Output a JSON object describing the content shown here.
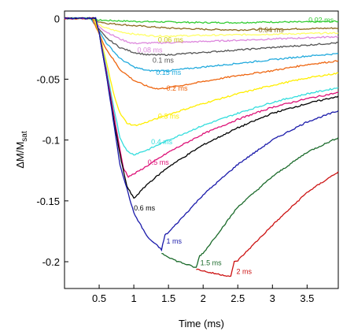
{
  "chart_data": {
    "type": "line",
    "xlabel": "Time (ms)",
    "ylabel": "ΔM/M",
    "ylabel_sub": "sat",
    "xlim": [
      0.0,
      3.95
    ],
    "ylim": [
      -0.222,
      0.006
    ],
    "x_ticks": [
      0.5,
      1,
      1.5,
      2,
      2.5,
      3,
      3.5
    ],
    "x_tick_labels": [
      "0.5",
      "1",
      "1.5",
      "2",
      "2.5",
      "3",
      "3.5"
    ],
    "y_ticks": [
      0,
      -0.05,
      -0.1,
      -0.15,
      -0.2
    ],
    "y_tick_labels": [
      "0",
      "-0.05",
      "-0.1",
      "-0.15",
      "-0.2"
    ],
    "grid": false,
    "series": [
      {
        "name": "0.02 ms",
        "color": "#33cc33",
        "label_at": [
          3.52,
          -0.0015
        ],
        "x": [
          0,
          0.3,
          0.38,
          0.42,
          0.5,
          1,
          1.5,
          2,
          2.5,
          3,
          3.5,
          3.95
        ],
        "y": [
          0,
          0,
          0,
          -0.001,
          -0.0015,
          -0.0025,
          -0.003,
          -0.0035,
          -0.0035,
          -0.003,
          -0.003,
          -0.0025
        ]
      },
      {
        "name": "0.04 ms",
        "color": "#8b6b20",
        "label_at": [
          2.8,
          -0.0095
        ],
        "x": [
          0,
          0.3,
          0.38,
          0.44,
          0.6,
          0.8,
          1.0,
          1.5,
          2.0,
          2.5,
          3.0,
          3.5,
          3.95
        ],
        "y": [
          0,
          0,
          0,
          -0.002,
          -0.004,
          -0.005,
          -0.006,
          -0.008,
          -0.009,
          -0.0095,
          -0.009,
          -0.0085,
          -0.008
        ]
      },
      {
        "name": "0.06 ms",
        "color": "#ffff66",
        "label_at": [
          1.35,
          -0.0175
        ],
        "x": [
          0,
          0.3,
          0.38,
          0.44,
          0.6,
          0.8,
          1.0,
          1.3,
          1.5,
          2.0,
          2.5,
          3.0,
          3.5,
          3.95
        ],
        "y": [
          0,
          0,
          0,
          -0.004,
          -0.008,
          -0.011,
          -0.013,
          -0.0145,
          -0.0145,
          -0.014,
          -0.0135,
          -0.013,
          -0.0125,
          -0.012
        ]
      },
      {
        "name": "0.08 ms",
        "color": "#dd88dd",
        "label_at": [
          1.05,
          -0.026
        ],
        "x": [
          0,
          0.3,
          0.38,
          0.44,
          0.6,
          0.8,
          0.95,
          1.0,
          1.5,
          2.0,
          2.5,
          3.0,
          3.5,
          3.95
        ],
        "y": [
          0,
          0,
          0,
          -0.004,
          -0.011,
          -0.017,
          -0.02,
          -0.0205,
          -0.02,
          -0.019,
          -0.018,
          -0.017,
          -0.016,
          -0.015
        ]
      },
      {
        "name": "0.1 ms",
        "color": "#555555",
        "label_at": [
          1.27,
          -0.0345
        ],
        "x": [
          0,
          0.3,
          0.38,
          0.44,
          0.6,
          0.8,
          1.0,
          1.2,
          1.5,
          2.0,
          2.5,
          3.0,
          3.5,
          3.95
        ],
        "y": [
          0,
          0,
          0,
          -0.005,
          -0.016,
          -0.024,
          -0.028,
          -0.03,
          -0.03,
          -0.028,
          -0.026,
          -0.024,
          -0.022,
          -0.02
        ]
      },
      {
        "name": "0.15 ms",
        "color": "#22aadd",
        "label_at": [
          1.32,
          -0.0445
        ],
        "x": [
          0,
          0.3,
          0.38,
          0.45,
          0.6,
          0.8,
          1.0,
          1.2,
          1.5,
          2.0,
          2.5,
          3.0,
          3.5,
          3.95
        ],
        "y": [
          0,
          0,
          0,
          -0.006,
          -0.02,
          -0.033,
          -0.04,
          -0.043,
          -0.043,
          -0.04,
          -0.037,
          -0.034,
          -0.031,
          -0.029
        ]
      },
      {
        "name": "0.2 ms",
        "color": "#ee6611",
        "label_at": [
          1.47,
          -0.0575
        ],
        "x": [
          0,
          0.3,
          0.4,
          0.46,
          0.6,
          0.8,
          1.0,
          1.2,
          1.35,
          1.5,
          2.0,
          2.5,
          3.0,
          3.5,
          3.95
        ],
        "y": [
          0,
          0,
          0,
          -0.008,
          -0.025,
          -0.042,
          -0.051,
          -0.056,
          -0.058,
          -0.057,
          -0.052,
          -0.047,
          -0.043,
          -0.038,
          -0.035
        ]
      },
      {
        "name": "0.3 ms",
        "color": "#ffee00",
        "label_at": [
          1.35,
          -0.0805
        ],
        "x": [
          0,
          0.3,
          0.42,
          0.5,
          0.6,
          0.7,
          0.8,
          0.9,
          1.0,
          1.1,
          1.3,
          1.5,
          2.0,
          2.5,
          3.0,
          3.5,
          3.95
        ],
        "y": [
          0,
          0,
          0,
          -0.012,
          -0.035,
          -0.06,
          -0.078,
          -0.086,
          -0.088,
          -0.087,
          -0.083,
          -0.079,
          -0.07,
          -0.062,
          -0.055,
          -0.049,
          -0.045
        ]
      },
      {
        "name": "0.4 ms",
        "color": "#33dddd",
        "label_at": [
          1.25,
          -0.1015
        ],
        "x": [
          0,
          0.3,
          0.45,
          0.5,
          0.6,
          0.7,
          0.8,
          0.9,
          1.0,
          1.2,
          1.5,
          2.0,
          2.5,
          3.0,
          3.5,
          3.95
        ],
        "y": [
          0,
          0,
          0,
          -0.012,
          -0.04,
          -0.07,
          -0.098,
          -0.109,
          -0.112,
          -0.108,
          -0.1,
          -0.088,
          -0.078,
          -0.069,
          -0.062,
          -0.057
        ]
      },
      {
        "name": "0.5 ms",
        "color": "#dd1177",
        "label_at": [
          1.2,
          -0.1185
        ],
        "x": [
          0,
          0.3,
          0.45,
          0.5,
          0.6,
          0.7,
          0.8,
          0.85,
          0.92,
          1.0,
          1.2,
          1.5,
          2.0,
          2.5,
          3.0,
          3.5,
          3.95
        ],
        "y": [
          0,
          0,
          0,
          -0.012,
          -0.042,
          -0.075,
          -0.108,
          -0.123,
          -0.13,
          -0.128,
          -0.121,
          -0.11,
          -0.095,
          -0.083,
          -0.073,
          -0.066,
          -0.061
        ]
      },
      {
        "name": "0.6 ms",
        "color": "#000000",
        "label_at": [
          1.0,
          -0.156
        ],
        "x": [
          0,
          0.3,
          0.45,
          0.5,
          0.6,
          0.7,
          0.8,
          0.9,
          1.0,
          1.05,
          1.2,
          1.5,
          2.0,
          2.5,
          3.0,
          3.5,
          3.95
        ],
        "y": [
          0,
          0,
          0,
          -0.012,
          -0.045,
          -0.08,
          -0.112,
          -0.138,
          -0.148,
          -0.145,
          -0.136,
          -0.122,
          -0.104,
          -0.09,
          -0.078,
          -0.07,
          -0.064
        ]
      },
      {
        "name": "1 ms",
        "color": "#1a1aaa",
        "label_at": [
          1.47,
          -0.183
        ],
        "x": [
          0,
          0.3,
          0.45,
          0.5,
          0.6,
          0.8,
          1.0,
          1.2,
          1.4,
          1.45,
          1.5,
          2.0,
          2.5,
          3.0,
          3.5,
          3.95
        ],
        "y": [
          0,
          0,
          0,
          -0.012,
          -0.045,
          -0.12,
          -0.16,
          -0.18,
          -0.19,
          -0.178,
          -0.176,
          -0.145,
          -0.12,
          -0.1,
          -0.085,
          -0.076
        ]
      },
      {
        "name": "1.5 ms",
        "color": "#1a6a2a",
        "label_at": [
          1.96,
          -0.201
        ],
        "x": [
          1.4,
          1.6,
          1.8,
          1.9,
          1.95,
          2.0,
          2.5,
          3.0,
          3.5,
          3.95
        ],
        "y": [
          -0.193,
          -0.199,
          -0.203,
          -0.205,
          -0.195,
          -0.193,
          -0.155,
          -0.13,
          -0.11,
          -0.098
        ]
      },
      {
        "name": "2 ms",
        "color": "#cc1111",
        "label_at": [
          2.48,
          -0.208
        ],
        "x": [
          1.9,
          2.1,
          2.3,
          2.4,
          2.45,
          2.5,
          3.0,
          3.5,
          3.95
        ],
        "y": [
          -0.206,
          -0.209,
          -0.211,
          -0.212,
          -0.2,
          -0.199,
          -0.17,
          -0.143,
          -0.126
        ]
      }
    ]
  }
}
